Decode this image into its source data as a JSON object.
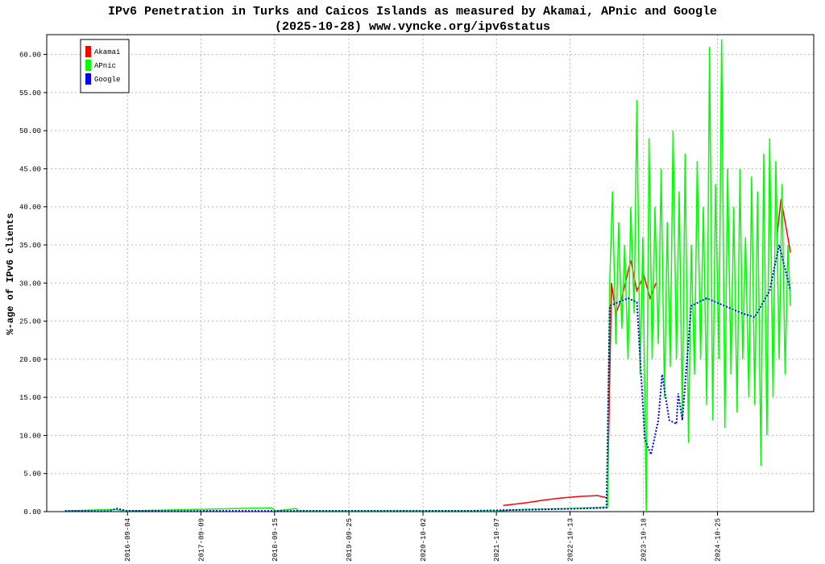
{
  "chart_data": {
    "type": "line",
    "title": "IPv6 Penetration in Turks and Caicos Islands as measured by Akamai, APnic and Google",
    "subtitle": "(2025-10-28) www.vyncke.org/ipv6status",
    "y_label": "%-age of IPv6 clients",
    "xlim": [
      "2015-07-25",
      "2026-02-22"
    ],
    "xticks": [
      "2016-09-04",
      "2017-09-09",
      "2018-09-15",
      "2019-09-25",
      "2020-10-02",
      "2021-10-07",
      "2022-10-13",
      "2023-10-18",
      "2024-10-25"
    ],
    "ylim": [
      0,
      62.6
    ],
    "yticks": [
      {
        "value": 0,
        "label": "0.00"
      },
      {
        "value": 5,
        "label": "5.00"
      },
      {
        "value": 10,
        "label": "10.00"
      },
      {
        "value": 15,
        "label": "15.00"
      },
      {
        "value": 20,
        "label": "20.00"
      },
      {
        "value": 25,
        "label": "25.00"
      },
      {
        "value": 30,
        "label": "30.00"
      },
      {
        "value": 35,
        "label": "35.00"
      },
      {
        "value": 40,
        "label": "40.00"
      },
      {
        "value": 45,
        "label": "45.00"
      },
      {
        "value": 50,
        "label": "50.00"
      },
      {
        "value": 55,
        "label": "55.00"
      },
      {
        "value": 60,
        "label": "60.00"
      }
    ],
    "grid": true,
    "legend": "top-left",
    "series": [
      {
        "name": "Akamai",
        "color": "#ff0000",
        "dashed": false,
        "x": [
          "2021-11-10",
          "2022-01-15",
          "2022-03-15",
          "2022-06-01",
          "2022-09-01",
          "2022-12-01",
          "2023-03-01",
          "2023-04-20",
          "2023-05-10",
          "2023-06-01",
          "2023-07-01",
          "2023-08-15",
          "2023-09-15",
          "2023-10-20",
          "2023-11-20",
          "2023-12-20",
          "2024-01-20",
          "2025-08-20",
          "2025-09-10",
          "2025-10-01",
          "2025-10-28"
        ],
        "values": [
          0.8,
          1.0,
          1.2,
          1.5,
          1.8,
          2.0,
          2.1,
          1.8,
          30,
          26,
          28,
          33,
          29,
          31,
          28,
          30,
          null,
          36,
          41,
          38,
          34
        ]
      },
      {
        "name": "APnic",
        "color": "#00ff00",
        "dashed": false,
        "x": [
          "2015-10-25",
          "2016-07-01",
          "2016-08-15",
          "2018-09-01",
          "2018-09-20",
          "2019-01-01",
          "2019-01-15",
          "2021-10-07",
          "2022-03-01",
          "2022-10-01",
          "2023-04-20",
          "2023-05-01",
          "2023-05-15",
          "2023-06-01",
          "2023-06-15",
          "2023-07-01",
          "2023-07-15",
          "2023-08-01",
          "2023-08-15",
          "2023-09-01",
          "2023-09-15",
          "2023-10-01",
          "2023-10-15",
          "2023-11-01",
          "2023-11-15",
          "2023-12-01",
          "2023-12-15",
          "2024-01-01",
          "2024-01-15",
          "2024-02-01",
          "2024-02-15",
          "2024-03-01",
          "2024-03-15",
          "2024-04-01",
          "2024-04-15",
          "2024-05-01",
          "2024-05-15",
          "2024-06-01",
          "2024-06-15",
          "2024-07-01",
          "2024-07-15",
          "2024-08-01",
          "2024-08-15",
          "2024-09-01",
          "2024-09-15",
          "2024-10-01",
          "2024-10-15",
          "2024-11-01",
          "2024-11-15",
          "2024-12-01",
          "2024-12-15",
          "2025-01-01",
          "2025-01-15",
          "2025-02-01",
          "2025-02-15",
          "2025-03-01",
          "2025-03-15",
          "2025-04-01",
          "2025-04-15",
          "2025-05-01",
          "2025-05-15",
          "2025-06-01",
          "2025-06-15",
          "2025-07-01",
          "2025-07-15",
          "2025-08-01",
          "2025-08-15",
          "2025-09-01",
          "2025-09-15",
          "2025-10-01",
          "2025-10-15",
          "2025-10-28"
        ],
        "values": [
          0.1,
          0.3,
          0.1,
          0.5,
          0.1,
          0.4,
          0.1,
          0.1,
          0.3,
          0.4,
          0.6,
          30,
          42,
          22,
          38,
          24,
          35,
          20,
          40,
          26,
          54,
          18,
          36,
          0,
          49,
          20,
          40,
          22,
          45,
          15,
          38,
          19,
          50,
          20,
          42,
          12,
          47,
          9,
          35,
          18,
          46,
          20,
          40,
          14,
          61,
          12,
          43,
          20,
          62,
          11,
          45,
          18,
          40,
          13,
          45,
          20,
          36,
          15,
          44,
          14,
          42,
          6,
          47,
          10,
          49,
          15,
          46,
          20,
          43,
          18,
          35,
          27
        ]
      },
      {
        "name": "Google",
        "color": "#0000ff",
        "dashed": true,
        "x": [
          "2015-10-25",
          "2016-06-01",
          "2016-07-15",
          "2016-09-01",
          "2018-01-01",
          "2020-01-01",
          "2021-06-01",
          "2021-12-01",
          "2022-06-01",
          "2022-12-01",
          "2023-04-15",
          "2023-05-01",
          "2023-06-15",
          "2023-08-01",
          "2023-09-15",
          "2023-10-25",
          "2023-11-25",
          "2024-01-01",
          "2024-01-20",
          "2024-02-25",
          "2024-04-01",
          "2024-04-10",
          "2024-05-01",
          "2024-06-15",
          "2024-09-01",
          "2024-12-01",
          "2025-03-01",
          "2025-05-01",
          "2025-07-15",
          "2025-09-01",
          "2025-10-28"
        ],
        "values": [
          0.1,
          0.1,
          0.4,
          0.1,
          0.1,
          0.1,
          0.1,
          0.2,
          0.3,
          0.4,
          0.5,
          27,
          27.5,
          28,
          27.5,
          9.5,
          7.5,
          12,
          18,
          12,
          11.5,
          15.5,
          12,
          27,
          28,
          27,
          26,
          25.5,
          29,
          35,
          29
        ]
      }
    ]
  }
}
